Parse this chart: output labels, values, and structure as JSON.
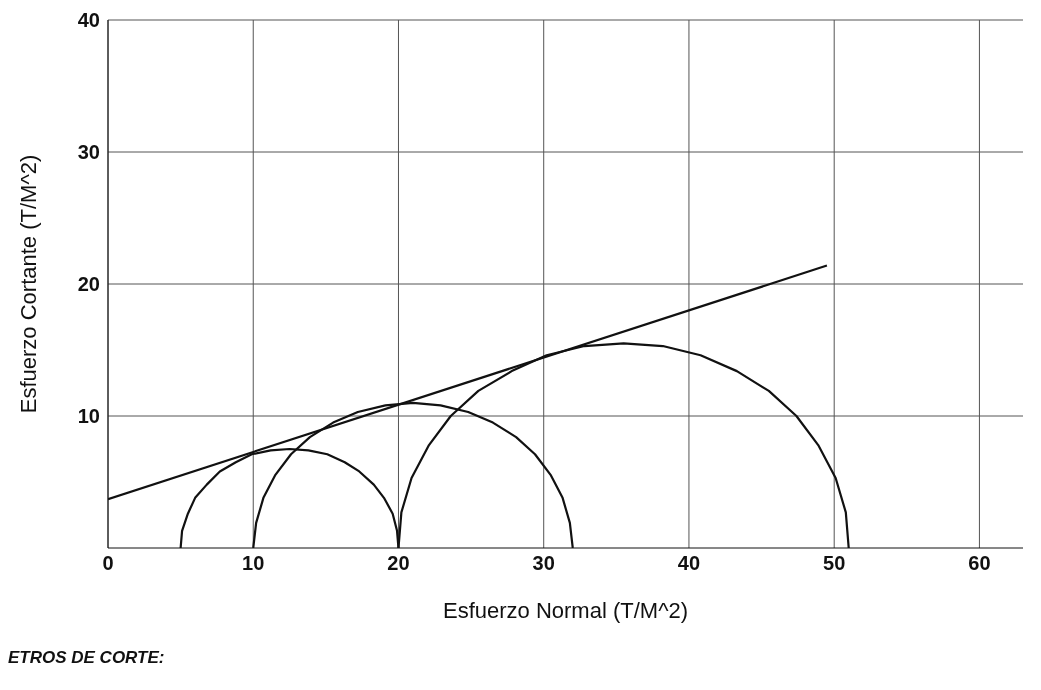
{
  "chart_data": {
    "type": "line",
    "xlabel": "Esfuerzo Normal (T/M^2)",
    "ylabel": "Esfuerzo Cortante (T/M^2)",
    "xlim": [
      0,
      63
    ],
    "xticks": [
      0,
      10,
      20,
      30,
      40,
      50,
      60
    ],
    "ylim": [
      0,
      40
    ],
    "yticks": [
      10,
      20,
      30,
      40
    ],
    "grid": true,
    "marker": "none",
    "line_style": "solid",
    "series": [
      {
        "color": "#111111",
        "x": [
          0,
          49.5
        ],
        "values": [
          3.7,
          21.4
        ]
      },
      {
        "color": "#111111",
        "x": [
          5,
          5.1,
          5.5,
          6,
          6.8,
          7.7,
          8.8,
          9.9,
          11.2,
          12.5,
          13.8,
          15.1,
          16.3,
          17.3,
          18.3,
          19,
          19.6,
          19.9,
          20
        ],
        "values": [
          0,
          1.3,
          2.6,
          3.8,
          4.8,
          5.8,
          6.5,
          7.1,
          7.4,
          7.5,
          7.4,
          7.1,
          6.5,
          5.8,
          4.8,
          3.8,
          2.6,
          1.3,
          0
        ]
      },
      {
        "color": "#111111",
        "x": [
          10,
          10.2,
          10.7,
          11.5,
          12.6,
          13.9,
          15.5,
          17.2,
          19.1,
          21,
          22.9,
          24.8,
          26.5,
          28.1,
          29.4,
          30.5,
          31.3,
          31.8,
          32
        ],
        "values": [
          0,
          1.9,
          3.8,
          5.5,
          7.1,
          8.4,
          9.5,
          10.3,
          10.8,
          11,
          10.8,
          10.3,
          9.5,
          8.4,
          7.1,
          5.5,
          3.8,
          1.9,
          0
        ]
      },
      {
        "color": "#111111",
        "x": [
          20,
          20.2,
          20.9,
          22.1,
          23.6,
          25.5,
          27.8,
          30.2,
          32.8,
          35.5,
          38.2,
          40.8,
          43.3,
          45.5,
          47.4,
          48.9,
          50.1,
          50.8,
          51
        ],
        "values": [
          0,
          2.7,
          5.3,
          7.8,
          10,
          11.9,
          13.4,
          14.6,
          15.3,
          15.5,
          15.3,
          14.6,
          13.4,
          11.9,
          10,
          7.8,
          5.3,
          2.7,
          0
        ]
      }
    ],
    "annotations": [
      "ETROS DE CORTE:"
    ]
  }
}
